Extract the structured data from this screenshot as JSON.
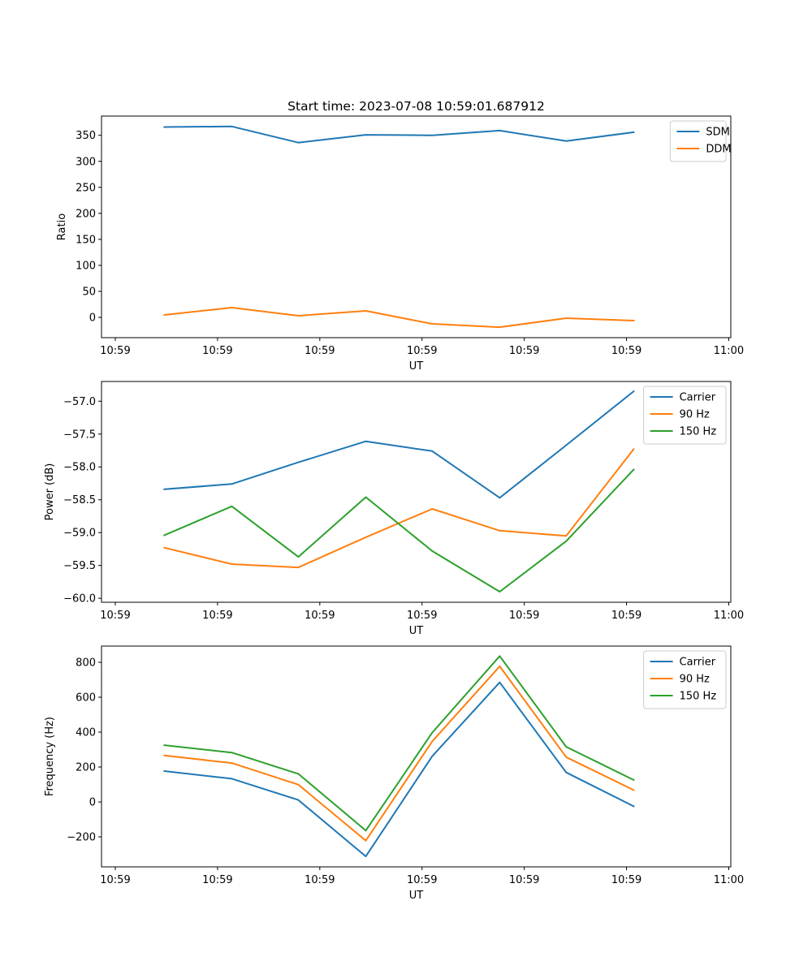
{
  "figure": {
    "title": "Start time: 2023-07-08 10:59:01.687912"
  },
  "chart_data": [
    {
      "type": "line",
      "title": "Start time: 2023-07-08 10:59:01.687912",
      "xlabel": "UT",
      "ylabel": "Ratio",
      "x_unit": "seconds after 10:59:00",
      "x": [
        4.8,
        11.4,
        17.9,
        24.5,
        31.0,
        37.6,
        44.1,
        50.7
      ],
      "xlim": [
        -1.35,
        60.2
      ],
      "x_ticks": [
        0,
        10,
        20,
        30,
        40,
        50,
        60
      ],
      "x_tick_labels": [
        "10:59",
        "10:59",
        "10:59",
        "10:59",
        "10:59",
        "10:59",
        "11:00"
      ],
      "ylim": [
        -39,
        387
      ],
      "y_ticks": [
        0,
        50,
        100,
        150,
        200,
        250,
        300,
        350
      ],
      "y_tick_labels": [
        "0",
        "50",
        "100",
        "150",
        "200",
        "250",
        "300",
        "350"
      ],
      "legend_position": "top-right",
      "grid": false,
      "series": [
        {
          "name": "SDM",
          "color": "#1f77b4",
          "values": [
            366,
            367,
            336,
            351,
            350,
            359,
            339,
            356
          ]
        },
        {
          "name": "DDM",
          "color": "#ff7f0e",
          "values": [
            4.7,
            18.8,
            3.1,
            12.5,
            -12.5,
            -18.8,
            -1.6,
            -6.3
          ]
        }
      ]
    },
    {
      "type": "line",
      "title": "",
      "xlabel": "UT",
      "ylabel": "Power (dB)",
      "x_unit": "seconds after 10:59:00",
      "x": [
        4.8,
        11.4,
        17.9,
        24.5,
        31.0,
        37.6,
        44.1,
        50.7
      ],
      "xlim": [
        -1.35,
        60.2
      ],
      "x_ticks": [
        0,
        10,
        20,
        30,
        40,
        50,
        60
      ],
      "x_tick_labels": [
        "10:59",
        "10:59",
        "10:59",
        "10:59",
        "10:59",
        "10:59",
        "11:00"
      ],
      "ylim": [
        -60.06,
        -56.7
      ],
      "y_ticks": [
        -60.0,
        -59.5,
        -59.0,
        -58.5,
        -58.0,
        -57.5,
        -57.0
      ],
      "y_tick_labels": [
        "−60.0",
        "−59.5",
        "−59.0",
        "−58.5",
        "−58.0",
        "−57.5",
        "−57.0"
      ],
      "legend_position": "top-right",
      "grid": false,
      "series": [
        {
          "name": "Carrier",
          "color": "#1f77b4",
          "values": [
            -58.34,
            -58.26,
            -57.93,
            -57.61,
            -57.76,
            -58.47,
            -57.67,
            -56.85
          ]
        },
        {
          "name": "90 Hz",
          "color": "#ff7f0e",
          "values": [
            -59.23,
            -59.48,
            -59.53,
            -59.07,
            -58.64,
            -58.97,
            -59.05,
            -57.73
          ]
        },
        {
          "name": "150 Hz",
          "color": "#2ca02c",
          "values": [
            -59.04,
            -58.6,
            -59.37,
            -58.46,
            -59.28,
            -59.9,
            -59.13,
            -58.04
          ]
        }
      ]
    },
    {
      "type": "line",
      "title": "",
      "xlabel": "UT",
      "ylabel": "Frequency (Hz)",
      "x_unit": "seconds after 10:59:00",
      "x": [
        4.8,
        11.4,
        17.9,
        24.5,
        31.0,
        37.6,
        44.1,
        50.7
      ],
      "xlim": [
        -1.35,
        60.2
      ],
      "x_ticks": [
        0,
        10,
        20,
        30,
        40,
        50,
        60
      ],
      "x_tick_labels": [
        "10:59",
        "10:59",
        "10:59",
        "10:59",
        "10:59",
        "10:59",
        "11:00"
      ],
      "ylim": [
        -372,
        893
      ],
      "y_ticks": [
        -200,
        0,
        200,
        400,
        600,
        800
      ],
      "y_tick_labels": [
        "−200",
        "0",
        "200",
        "400",
        "600",
        "800"
      ],
      "legend_position": "top-right",
      "grid": false,
      "series": [
        {
          "name": "Carrier",
          "color": "#1f77b4",
          "values": [
            177,
            133,
            11,
            -312,
            262,
            685,
            169,
            -25
          ]
        },
        {
          "name": "90 Hz",
          "color": "#ff7f0e",
          "values": [
            266,
            223,
            99,
            -222,
            347,
            777,
            257,
            68
          ]
        },
        {
          "name": "150 Hz",
          "color": "#2ca02c",
          "values": [
            325,
            283,
            161,
            -164,
            397,
            836,
            316,
            126
          ]
        }
      ]
    }
  ]
}
